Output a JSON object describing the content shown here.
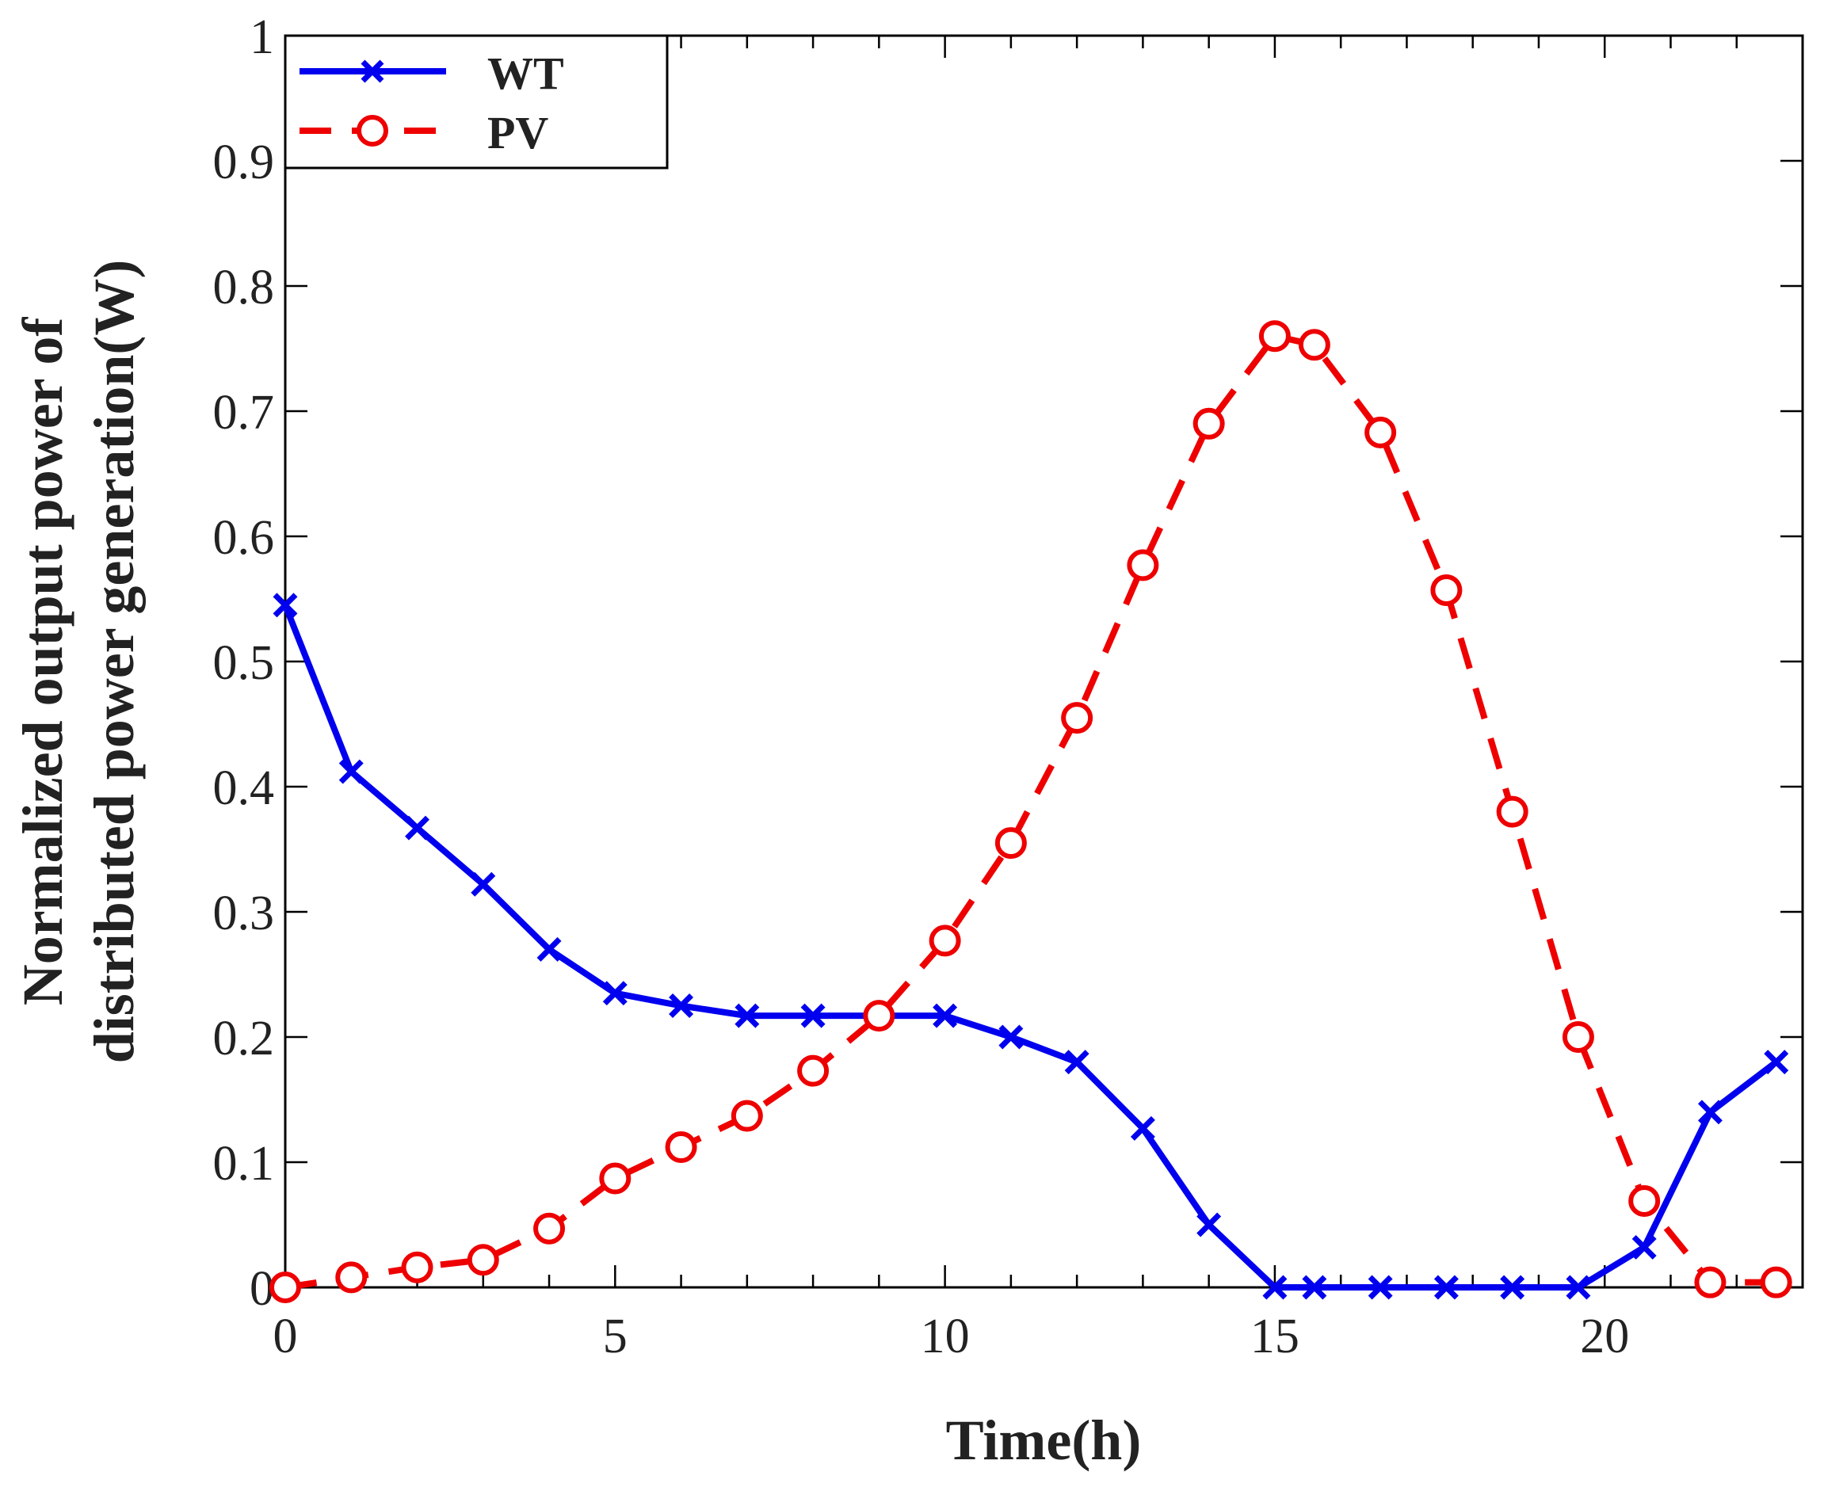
{
  "chart_data": {
    "type": "line",
    "title": "",
    "xlabel": "Time(h)",
    "ylabel_lines": [
      "Normalized output power of",
      "distributed power generation(W)"
    ],
    "xlim": [
      0,
      23
    ],
    "ylim": [
      0,
      1
    ],
    "xticks": [
      0,
      5,
      10,
      15,
      20
    ],
    "xtick_labels": [
      "0",
      "5",
      "10",
      "15",
      "20"
    ],
    "yticks": [
      0,
      0.1,
      0.2,
      0.3,
      0.4,
      0.5,
      0.6,
      0.7,
      0.8,
      0.9,
      1
    ],
    "ytick_labels": [
      "0",
      "0.1",
      "0.2",
      "0.3",
      "0.4",
      "0.5",
      "0.6",
      "0.7",
      "0.8",
      "0.9",
      "1"
    ],
    "grid": false,
    "legend_position": "top-left",
    "series": [
      {
        "name": "WT",
        "color": "#0000ee",
        "line_style": "solid",
        "marker": "x",
        "x": [
          0,
          1,
          2,
          3,
          4,
          5,
          6,
          7,
          8,
          9,
          10,
          11,
          12,
          13,
          14,
          15,
          15.6,
          16.6,
          17.6,
          18.6,
          19.6,
          20.6,
          21.6,
          22.6
        ],
        "values": [
          0.545,
          0.412,
          0.367,
          0.322,
          0.27,
          0.235,
          0.225,
          0.217,
          0.217,
          0.217,
          0.217,
          0.2,
          0.18,
          0.127,
          0.05,
          0.0,
          0.0,
          0.0,
          0.0,
          0.0,
          0.0,
          0.032,
          0.14,
          0.18
        ]
      },
      {
        "name": "PV",
        "color": "#ee0000",
        "line_style": "dashed",
        "marker": "o",
        "x": [
          0,
          1,
          2,
          3,
          4,
          5,
          6,
          7,
          8,
          9,
          10,
          11,
          12,
          13,
          14,
          15,
          15.6,
          16.6,
          17.6,
          18.6,
          19.6,
          20.6,
          21.6,
          22.6
        ],
        "values": [
          0.0,
          0.008,
          0.016,
          0.022,
          0.047,
          0.087,
          0.112,
          0.137,
          0.173,
          0.217,
          0.277,
          0.355,
          0.455,
          0.577,
          0.69,
          0.76,
          0.753,
          0.683,
          0.557,
          0.38,
          0.2,
          0.069,
          0.004,
          0.004
        ]
      }
    ]
  }
}
